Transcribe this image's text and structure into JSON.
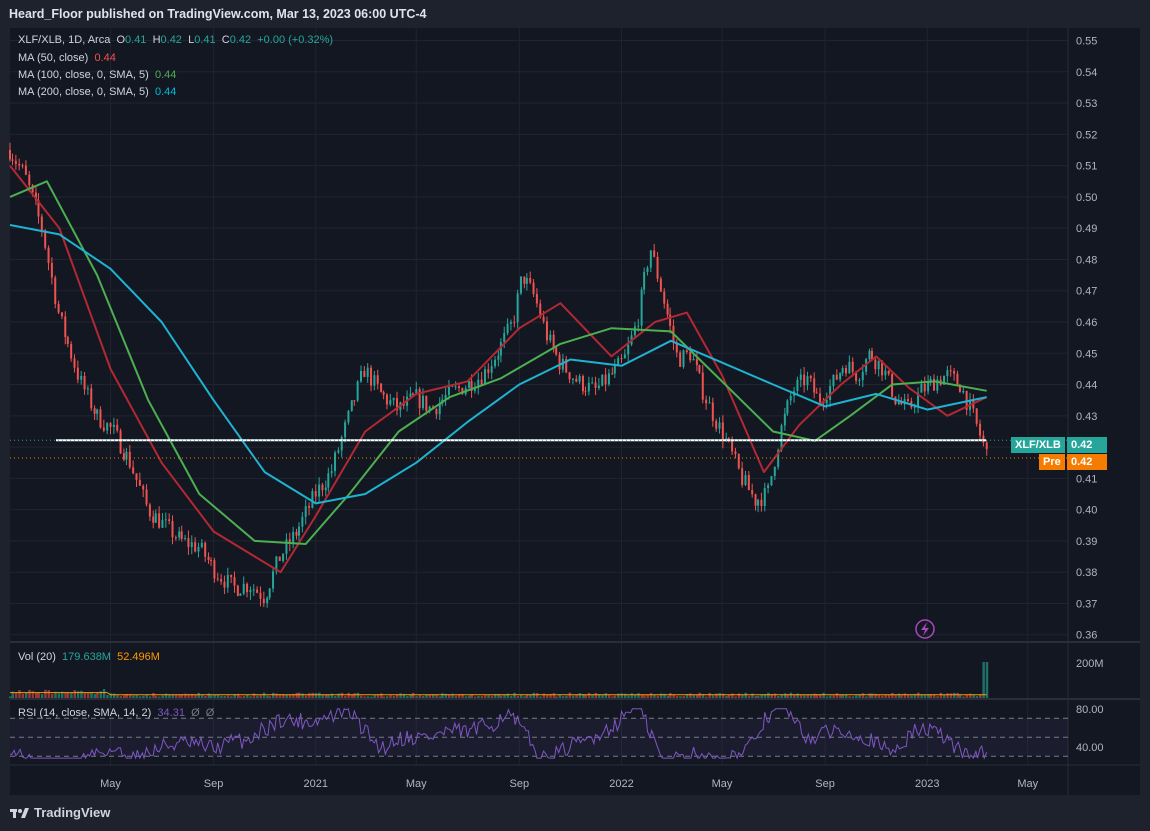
{
  "header": {
    "publish_line": "Heard_Floor published on TradingView.com, Mar 13, 2023 06:00 UTC-4"
  },
  "legend": {
    "symbol_line": {
      "symbol": "XLF/XLB, 1D, Arca",
      "o_label": "O",
      "o": "0.41",
      "h_label": "H",
      "h": "0.42",
      "l_label": "L",
      "l": "0.41",
      "c_label": "C",
      "c": "0.42",
      "chg": "+0.00 (+0.32%)"
    },
    "ma50": {
      "label": "MA (50, close)",
      "value": "0.44"
    },
    "ma100": {
      "label": "MA (100, close, 0, SMA, 5)",
      "value": "0.44"
    },
    "ma200": {
      "label": "MA (200, close, 0, SMA, 5)",
      "value": "0.44"
    }
  },
  "tags": {
    "symbol_label": "XLF/XLB",
    "symbol_value": "0.42",
    "pre_label": "Pre",
    "pre_value": "0.42"
  },
  "volume_legend": {
    "label": "Vol (20)",
    "value1": "179.638M",
    "value2": "52.496M"
  },
  "rsi_legend": {
    "label": "RSI (14, close, SMA, 14, 2)",
    "value": "34.31",
    "extra1": "Ø",
    "extra2": "Ø"
  },
  "footer": {
    "brand": "TradingView"
  },
  "colors": {
    "up": "#26a69a",
    "down": "#ef5350",
    "ma50": "#b22833",
    "ma100": "#4caf50",
    "ma200": "#1fb3d1",
    "rsi": "#7e57c2",
    "vol_ma": "#ff9800",
    "bg": "#131722"
  },
  "chart_data": {
    "type": "line",
    "title": "XLF/XLB, 1D, Arca",
    "x_ticks": [
      "May",
      "Sep",
      "2021",
      "May",
      "Sep",
      "2022",
      "May",
      "Sep",
      "2023",
      "May"
    ],
    "y_ticks": [
      "0.55",
      "0.54",
      "0.53",
      "0.52",
      "0.51",
      "0.50",
      "0.49",
      "0.48",
      "0.47",
      "0.46",
      "0.45",
      "0.44",
      "0.43",
      "0.42",
      "0.41",
      "0.40",
      "0.39",
      "0.38",
      "0.37",
      "0.36"
    ],
    "ylim": [
      0.358,
      0.554
    ],
    "horizontal_line": 0.4222,
    "price": {
      "x": [
        "2020-01-02",
        "2020-01-20",
        "2020-02-10",
        "2020-03-01",
        "2020-03-25",
        "2020-04-15",
        "2020-05-05",
        "2020-05-25",
        "2020-06-15",
        "2020-07-05",
        "2020-07-25",
        "2020-08-15",
        "2020-09-05",
        "2020-09-25",
        "2020-10-15",
        "2020-11-01",
        "2020-11-20",
        "2020-12-10",
        "2021-01-01",
        "2021-01-20",
        "2021-02-10",
        "2021-03-01",
        "2021-03-20",
        "2021-04-10",
        "2021-05-01",
        "2021-05-20",
        "2021-06-10",
        "2021-07-01",
        "2021-07-20",
        "2021-08-10",
        "2021-08-25",
        "2021-09-05",
        "2021-09-20",
        "2021-10-05",
        "2021-10-20",
        "2021-11-10",
        "2021-12-01",
        "2021-12-20",
        "2022-01-05",
        "2022-01-20",
        "2022-02-05",
        "2022-02-20",
        "2022-03-10",
        "2022-03-25",
        "2022-04-10",
        "2022-04-25",
        "2022-05-10",
        "2022-05-25",
        "2022-06-10",
        "2022-06-25",
        "2022-07-10",
        "2022-07-25",
        "2022-08-10",
        "2022-08-25",
        "2022-09-10",
        "2022-09-25",
        "2022-10-10",
        "2022-10-25",
        "2022-11-10",
        "2022-11-25",
        "2022-12-10",
        "2022-12-25",
        "2023-01-10",
        "2023-01-25",
        "2023-02-10",
        "2023-02-25",
        "2023-03-13"
      ],
      "close": [
        0.515,
        0.507,
        0.49,
        0.462,
        0.442,
        0.43,
        0.425,
        0.415,
        0.4,
        0.395,
        0.39,
        0.388,
        0.38,
        0.375,
        0.376,
        0.372,
        0.385,
        0.393,
        0.405,
        0.412,
        0.43,
        0.445,
        0.437,
        0.432,
        0.436,
        0.432,
        0.437,
        0.44,
        0.443,
        0.452,
        0.46,
        0.475,
        0.468,
        0.455,
        0.447,
        0.441,
        0.438,
        0.443,
        0.448,
        0.46,
        0.484,
        0.468,
        0.448,
        0.45,
        0.437,
        0.428,
        0.42,
        0.41,
        0.403,
        0.405,
        0.425,
        0.438,
        0.442,
        0.435,
        0.44,
        0.447,
        0.443,
        0.45,
        0.445,
        0.435,
        0.432,
        0.438,
        0.441,
        0.443,
        0.44,
        0.43,
        0.418
      ]
    },
    "series": [
      {
        "name": "MA (50, close)",
        "x": [
          "2020-01-02",
          "2020-03-01",
          "2020-05-01",
          "2020-07-01",
          "2020-09-01",
          "2020-11-20",
          "2021-01-01",
          "2021-03-01",
          "2021-05-01",
          "2021-07-01",
          "2021-09-01",
          "2021-10-20",
          "2021-12-20",
          "2022-02-10",
          "2022-03-20",
          "2022-05-01",
          "2022-06-20",
          "2022-08-01",
          "2022-09-20",
          "2022-11-01",
          "2022-12-10",
          "2023-01-25",
          "2023-03-13"
        ],
        "values": [
          0.51,
          0.49,
          0.445,
          0.415,
          0.393,
          0.38,
          0.398,
          0.425,
          0.437,
          0.441,
          0.458,
          0.466,
          0.449,
          0.46,
          0.463,
          0.443,
          0.412,
          0.427,
          0.44,
          0.449,
          0.439,
          0.43,
          0.436
        ]
      },
      {
        "name": "MA (100, close, 0, SMA, 5)",
        "x": [
          "2020-01-02",
          "2020-02-15",
          "2020-04-15",
          "2020-06-15",
          "2020-08-15",
          "2020-10-20",
          "2020-12-20",
          "2021-02-10",
          "2021-04-10",
          "2021-06-10",
          "2021-08-10",
          "2021-10-20",
          "2021-12-20",
          "2022-03-01",
          "2022-05-01",
          "2022-07-01",
          "2022-08-20",
          "2022-10-01",
          "2022-11-20",
          "2023-01-10",
          "2023-03-13"
        ],
        "values": [
          0.5,
          0.505,
          0.475,
          0.435,
          0.405,
          0.39,
          0.389,
          0.405,
          0.425,
          0.436,
          0.442,
          0.453,
          0.458,
          0.457,
          0.441,
          0.425,
          0.422,
          0.43,
          0.44,
          0.441,
          0.438
        ]
      },
      {
        "name": "MA (200, close, 0, SMA, 5)",
        "x": [
          "2020-01-02",
          "2020-03-01",
          "2020-05-01",
          "2020-07-01",
          "2020-09-01",
          "2020-11-01",
          "2021-01-01",
          "2021-03-01",
          "2021-05-01",
          "2021-07-01",
          "2021-09-01",
          "2021-11-01",
          "2022-01-01",
          "2022-03-01",
          "2022-05-01",
          "2022-07-01",
          "2022-09-01",
          "2022-11-01",
          "2023-01-01",
          "2023-03-13"
        ],
        "values": [
          0.491,
          0.488,
          0.477,
          0.46,
          0.435,
          0.412,
          0.402,
          0.405,
          0.415,
          0.428,
          0.44,
          0.448,
          0.446,
          0.454,
          0.447,
          0.44,
          0.433,
          0.437,
          0.432,
          0.436
        ]
      }
    ],
    "volume": {
      "label": "Vol (20)",
      "y_tick": "200M"
    },
    "rsi": {
      "label": "RSI (14, close, SMA, 14, 2)",
      "y_ticks": [
        "80.00",
        "40.00"
      ],
      "last": 34.31
    }
  }
}
